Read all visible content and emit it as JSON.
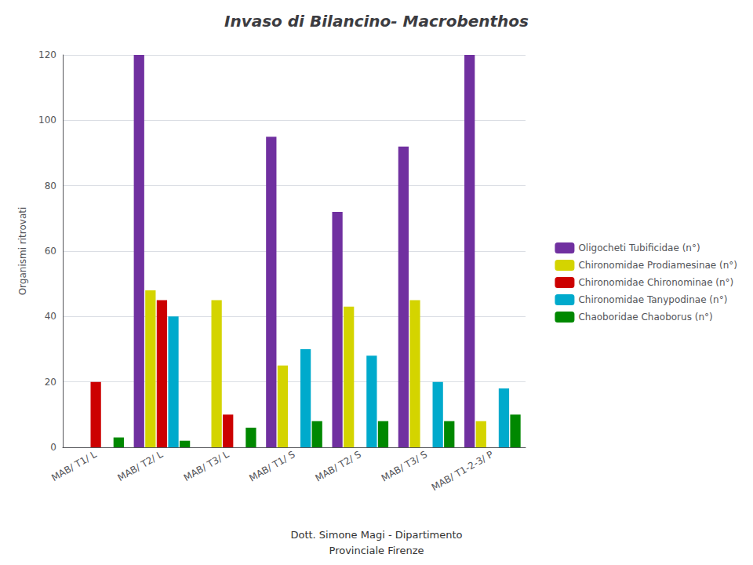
{
  "chart_data": {
    "type": "bar",
    "title": "Invaso di Bilancino- Macrobenthos",
    "y_label": "Organismi ritrovati",
    "categories": [
      "MAB/ T1/ L",
      "MAB/ T2/ L",
      "MAB/ T3/ L",
      "MAB/ T1/ S",
      "MAB/ T2/ S",
      "MAB/ T3/ S",
      "MAB/ T1-2-3/ P"
    ],
    "series": [
      {
        "name": "Oligocheti Tubificidae (n°)",
        "color": "#7030a0",
        "values": [
          0,
          120,
          0,
          95,
          72,
          92,
          120
        ]
      },
      {
        "name": "Chironomidae Prodiamesinae (n°)",
        "color": "#d4d400",
        "values": [
          0,
          48,
          45,
          25,
          43,
          45,
          8
        ]
      },
      {
        "name": "Chironomidae Chironominae (n°)",
        "color": "#cc0000",
        "values": [
          20,
          45,
          10,
          0,
          0,
          0,
          0
        ]
      },
      {
        "name": "Chironomidae Tanypodinae (n°)",
        "color": "#00aacc",
        "values": [
          0,
          40,
          0,
          30,
          28,
          20,
          18
        ]
      },
      {
        "name": "Chaoboridae Chaoborus (n°)",
        "color": "#008800",
        "values": [
          3,
          2,
          6,
          8,
          8,
          8,
          10
        ]
      }
    ],
    "ylim": [
      0,
      120
    ],
    "yticks": [
      0,
      20,
      40,
      60,
      80,
      100,
      120
    ],
    "grid": true,
    "legend": "right",
    "annotations": [
      "Dott. Simone Magi - Dipartimento",
      "Provinciale Firenze"
    ]
  }
}
